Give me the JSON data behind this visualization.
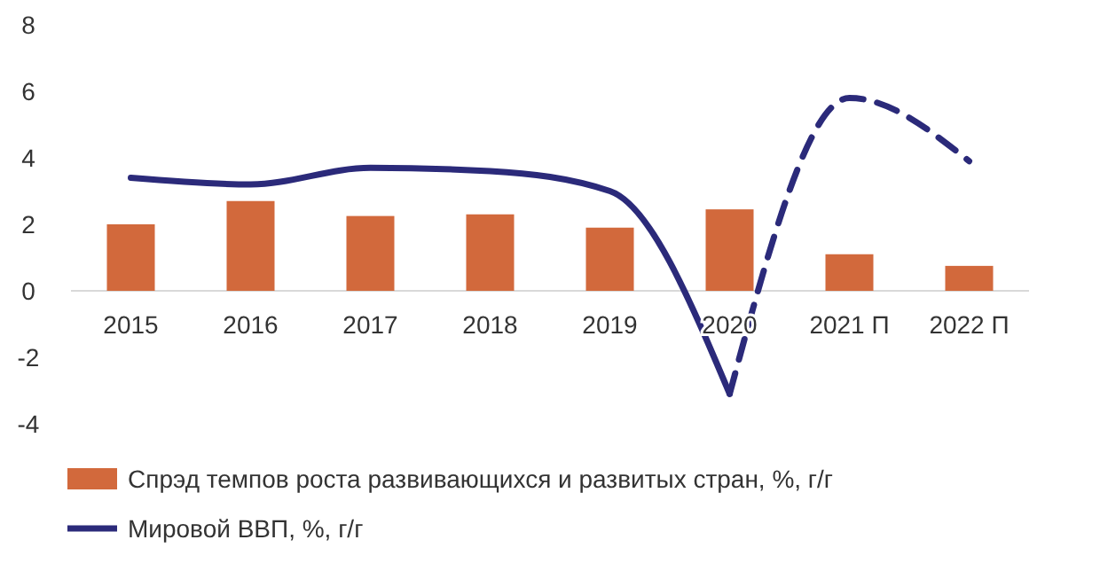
{
  "chart_data": {
    "type": "bar",
    "categories": [
      "2015",
      "2016",
      "2017",
      "2018",
      "2019",
      "2020",
      "2021 П",
      "2022 П"
    ],
    "series": [
      {
        "name": "Спрэд темпов роста развивающихся и развитых стран, %, г/г",
        "color": "#d2693c",
        "values": [
          2.0,
          2.7,
          2.25,
          2.3,
          1.9,
          2.45,
          1.1,
          0.75
        ]
      },
      {
        "name": "Мировой ВВП, %, г/г",
        "type": "line",
        "color": "#2b2a7a",
        "line_style": "solid",
        "values": [
          3.4,
          3.2,
          3.7,
          3.6,
          3.0,
          -3.1,
          null,
          null
        ]
      },
      {
        "type": "line",
        "color": "#2b2a7a",
        "line_style": "dashed",
        "values": [
          null,
          null,
          null,
          null,
          null,
          -3.1,
          5.8,
          3.9
        ]
      }
    ],
    "ylim": [
      -4,
      8
    ],
    "yticks": [
      -4,
      -2,
      0,
      2,
      4,
      6,
      8
    ],
    "grid": false,
    "legend": "bottom",
    "marker": "none"
  }
}
